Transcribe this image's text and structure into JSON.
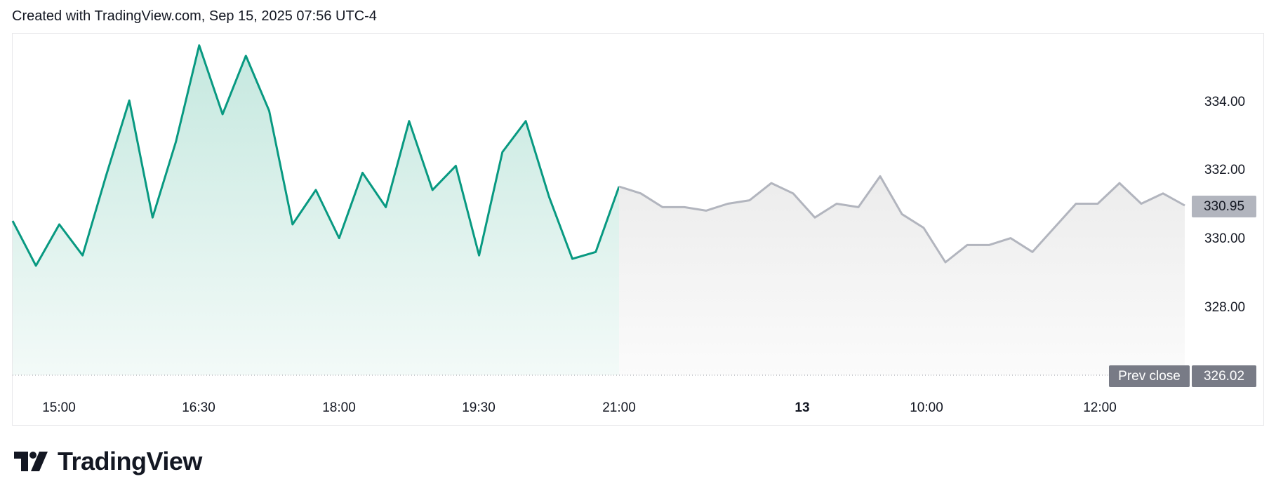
{
  "header": {
    "text": "Created with TradingView.com, Sep 15, 2025 07:56 UTC-4"
  },
  "brand": {
    "name": "TradingView",
    "icon": "tradingview-logo-icon"
  },
  "colors": {
    "session_line": "#089981",
    "session_fill": "#d6efe9",
    "extended_line": "#b2b5be",
    "extended_fill": "#ededed",
    "prev_close_line": "#9598a1",
    "badge_bg": "#b2b5be",
    "prev_close_bg": "#787b86"
  },
  "chart_data": {
    "type": "area",
    "x_tick_labels": [
      "15:00",
      "16:30",
      "18:00",
      "19:30",
      "21:00",
      "13",
      "10:00",
      "12:00"
    ],
    "y_tick_labels": [
      "334.00",
      "332.00",
      "330.00",
      "328.00"
    ],
    "ylim": [
      326.02,
      335.9
    ],
    "grid": false,
    "last_price": "330.95",
    "prev_close": {
      "label": "Prev close",
      "value": "326.02"
    },
    "series": [
      {
        "segment": "regular",
        "x_time": [
          "14:30",
          "14:45",
          "15:00",
          "15:15",
          "15:30",
          "15:45",
          "16:00",
          "16:15",
          "16:30",
          "16:45",
          "17:00",
          "17:15",
          "17:30",
          "17:45",
          "18:00",
          "18:15",
          "18:30",
          "18:45",
          "19:00",
          "19:15",
          "19:30",
          "19:45",
          "20:00",
          "20:15",
          "20:30",
          "20:45",
          "21:00"
        ],
        "values": [
          330.5,
          329.2,
          330.4,
          329.5,
          331.8,
          334.0,
          330.6,
          332.8,
          335.6,
          333.6,
          335.3,
          333.7,
          330.4,
          331.4,
          330.0,
          331.9,
          330.9,
          333.4,
          331.4,
          332.1,
          329.5,
          332.5,
          333.4,
          331.2,
          329.4,
          329.6,
          331.5
        ]
      },
      {
        "segment": "extended",
        "x_time": [
          "21:00",
          "21:15",
          "21:30",
          "21:45",
          "22:00",
          "22:15",
          "22:30",
          "22:45",
          "23:00",
          "23:15",
          "23:30",
          "23:45",
          "13 00:00",
          "13 00:15",
          "13 00:30",
          "13 00:45",
          "09:00",
          "09:30",
          "10:00",
          "10:30",
          "11:00",
          "11:30",
          "12:00",
          "12:15",
          "12:30",
          "12:45",
          "13:00"
        ],
        "values": [
          331.5,
          331.3,
          330.9,
          330.9,
          330.8,
          331.0,
          331.1,
          331.6,
          331.3,
          330.6,
          331.0,
          330.9,
          331.8,
          330.7,
          330.3,
          329.3,
          329.8,
          329.8,
          330.0,
          329.6,
          330.3,
          331.0,
          331.0,
          331.6,
          331.0,
          331.3,
          330.95
        ]
      }
    ]
  }
}
